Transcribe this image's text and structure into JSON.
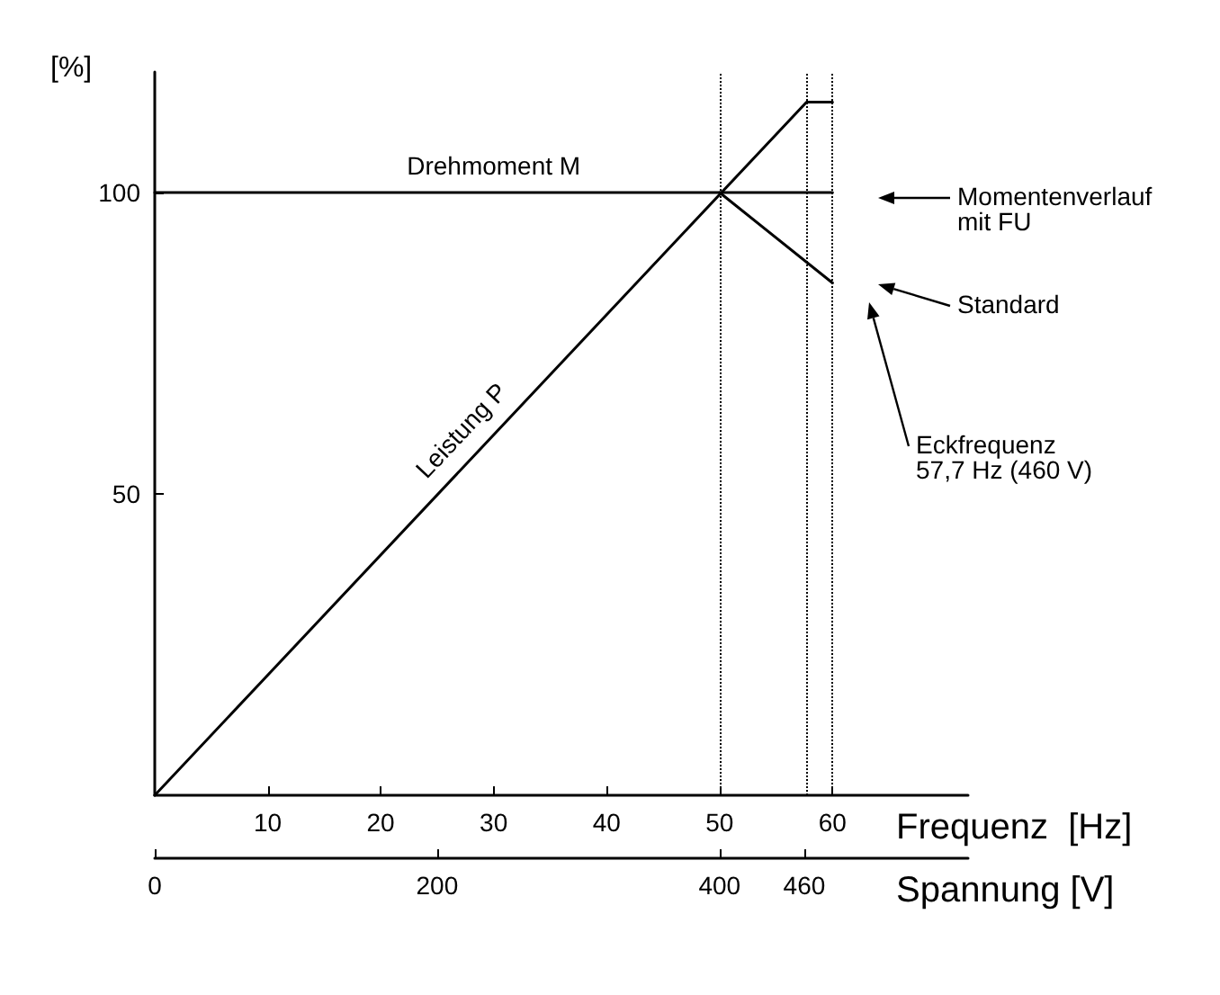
{
  "chart_data": {
    "type": "line",
    "ylabel": "[%]",
    "xlabel": "Frequenz  [Hz]",
    "x2label": "Spannung [V]",
    "xlim": [
      0,
      72
    ],
    "xticks": [
      10,
      20,
      30,
      40,
      50,
      60
    ],
    "x2lim": [
      0,
      576
    ],
    "x2ticks": [
      0,
      200,
      400,
      460
    ],
    "ylim": [
      0,
      120
    ],
    "yticks": [
      50,
      100
    ],
    "series": [
      {
        "name": "Drehmoment M",
        "color": "#000000",
        "x": [
          0,
          60
        ],
        "values": [
          100,
          100
        ]
      },
      {
        "name": "Leistung P",
        "color": "#000000",
        "x": [
          0,
          57.7,
          60
        ],
        "values": [
          0,
          115,
          115
        ]
      },
      {
        "color": "#000000",
        "x": [
          50,
          60
        ],
        "values": [
          100,
          85
        ]
      }
    ],
    "ref_lines": [
      {
        "axis": "x",
        "value": 50,
        "line_style": "dotted"
      },
      {
        "axis": "x",
        "value": 57.7,
        "line_style": "dotted"
      },
      {
        "axis": "x",
        "value": 60,
        "line_style": "dotted"
      }
    ],
    "annotations": [
      "Momentenverlauf\nmit FU",
      "Standard",
      "Eckfrequenz\n57,7 Hz (460 V)"
    ],
    "grid": false,
    "legend": false,
    "line_style": "solid"
  }
}
